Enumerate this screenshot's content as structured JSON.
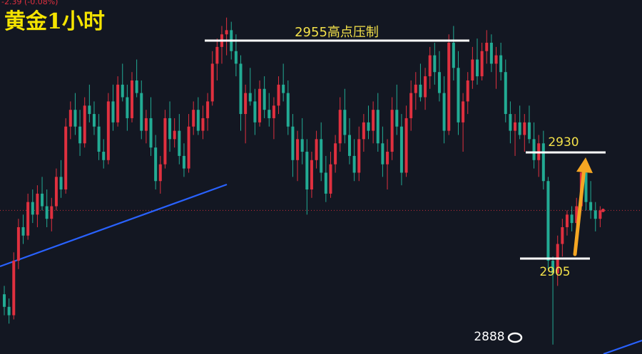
{
  "chart_data": {
    "type": "candlestick",
    "title": "黄金1小时",
    "ticker_readout": "-2.39 (-0.08%)",
    "colors": {
      "background": "#131722",
      "up": "#e0303f",
      "down": "#22ab94",
      "trendline": "#2962ff",
      "level_line": "#ffffff",
      "text": "#f3e14a",
      "arrow": "#f5a623",
      "current_price_line": "#e0303f"
    },
    "price_range": [
      2884,
      2970
    ],
    "current_price": 2918,
    "annotations": {
      "resistance": {
        "label": "2955高点压制",
        "price": 2955
      },
      "target": {
        "label": "2930",
        "price": 2930
      },
      "support": {
        "label": "2905",
        "price": 2905
      },
      "low": {
        "label": "2888",
        "price": 2888
      }
    },
    "candles": [
      [
        2898,
        2900,
        2893,
        2895
      ],
      [
        2895,
        2897,
        2891,
        2893
      ],
      [
        2893,
        2908,
        2892,
        2906
      ],
      [
        2906,
        2916,
        2904,
        2914
      ],
      [
        2914,
        2917,
        2910,
        2912
      ],
      [
        2912,
        2922,
        2911,
        2920
      ],
      [
        2920,
        2923,
        2915,
        2917
      ],
      [
        2917,
        2924,
        2914,
        2922
      ],
      [
        2922,
        2926,
        2918,
        2919
      ],
      [
        2919,
        2923,
        2914,
        2916
      ],
      [
        2916,
        2921,
        2913,
        2919
      ],
      [
        2919,
        2928,
        2918,
        2926
      ],
      [
        2926,
        2930,
        2921,
        2923
      ],
      [
        2923,
        2940,
        2922,
        2938
      ],
      [
        2938,
        2944,
        2935,
        2942
      ],
      [
        2942,
        2946,
        2936,
        2938
      ],
      [
        2938,
        2942,
        2931,
        2934
      ],
      [
        2934,
        2945,
        2933,
        2943
      ],
      [
        2943,
        2948,
        2939,
        2941
      ],
      [
        2941,
        2944,
        2936,
        2938
      ],
      [
        2938,
        2941,
        2930,
        2932
      ],
      [
        2932,
        2935,
        2928,
        2930
      ],
      [
        2930,
        2946,
        2929,
        2944
      ],
      [
        2944,
        2948,
        2937,
        2939
      ],
      [
        2939,
        2950,
        2938,
        2948
      ],
      [
        2948,
        2953,
        2944,
        2945
      ],
      [
        2945,
        2948,
        2937,
        2940
      ],
      [
        2940,
        2951,
        2939,
        2949
      ],
      [
        2949,
        2954,
        2945,
        2946
      ],
      [
        2946,
        2949,
        2935,
        2937
      ],
      [
        2937,
        2942,
        2934,
        2940
      ],
      [
        2940,
        2945,
        2931,
        2933
      ],
      [
        2933,
        2936,
        2923,
        2925
      ],
      [
        2925,
        2931,
        2922,
        2929
      ],
      [
        2929,
        2942,
        2928,
        2940
      ],
      [
        2940,
        2944,
        2932,
        2935
      ],
      [
        2935,
        2940,
        2933,
        2937
      ],
      [
        2937,
        2941,
        2929,
        2931
      ],
      [
        2931,
        2934,
        2926,
        2928
      ],
      [
        2928,
        2941,
        2927,
        2938
      ],
      [
        2938,
        2944,
        2936,
        2942
      ],
      [
        2942,
        2945,
        2936,
        2937
      ],
      [
        2937,
        2943,
        2935,
        2940
      ],
      [
        2940,
        2946,
        2937,
        2944
      ],
      [
        2944,
        2956,
        2943,
        2953
      ],
      [
        2953,
        2959,
        2949,
        2957
      ],
      [
        2957,
        2962,
        2953,
        2960
      ],
      [
        2960,
        2964,
        2955,
        2961
      ],
      [
        2961,
        2963,
        2954,
        2956
      ],
      [
        2956,
        2960,
        2950,
        2953
      ],
      [
        2953,
        2955,
        2937,
        2941
      ],
      [
        2941,
        2948,
        2934,
        2946
      ],
      [
        2946,
        2952,
        2943,
        2944
      ],
      [
        2944,
        2947,
        2936,
        2939
      ],
      [
        2939,
        2949,
        2938,
        2947
      ],
      [
        2947,
        2950,
        2940,
        2942
      ],
      [
        2942,
        2946,
        2938,
        2940
      ],
      [
        2940,
        2945,
        2935,
        2943
      ],
      [
        2943,
        2950,
        2941,
        2948
      ],
      [
        2948,
        2953,
        2944,
        2946
      ],
      [
        2946,
        2949,
        2936,
        2938
      ],
      [
        2938,
        2941,
        2926,
        2930
      ],
      [
        2930,
        2937,
        2925,
        2935
      ],
      [
        2935,
        2940,
        2929,
        2932
      ],
      [
        2932,
        2935,
        2917,
        2923
      ],
      [
        2923,
        2932,
        2921,
        2930
      ],
      [
        2930,
        2937,
        2928,
        2935
      ],
      [
        2935,
        2939,
        2925,
        2927
      ],
      [
        2927,
        2931,
        2920,
        2922
      ],
      [
        2922,
        2932,
        2921,
        2929
      ],
      [
        2929,
        2936,
        2927,
        2934
      ],
      [
        2934,
        2945,
        2932,
        2942
      ],
      [
        2942,
        2947,
        2934,
        2936
      ],
      [
        2936,
        2940,
        2929,
        2931
      ],
      [
        2931,
        2935,
        2925,
        2927
      ],
      [
        2927,
        2938,
        2925,
        2935
      ],
      [
        2935,
        2941,
        2932,
        2939
      ],
      [
        2939,
        2943,
        2935,
        2937
      ],
      [
        2937,
        2944,
        2934,
        2942
      ],
      [
        2942,
        2946,
        2932,
        2934
      ],
      [
        2934,
        2938,
        2926,
        2929
      ],
      [
        2929,
        2935,
        2923,
        2932
      ],
      [
        2932,
        2945,
        2930,
        2942
      ],
      [
        2942,
        2948,
        2936,
        2938
      ],
      [
        2938,
        2941,
        2924,
        2927
      ],
      [
        2927,
        2943,
        2926,
        2940
      ],
      [
        2940,
        2949,
        2937,
        2946
      ],
      [
        2946,
        2951,
        2942,
        2948
      ],
      [
        2948,
        2953,
        2944,
        2945
      ],
      [
        2945,
        2952,
        2942,
        2950
      ],
      [
        2950,
        2957,
        2947,
        2955
      ],
      [
        2955,
        2958,
        2948,
        2951
      ],
      [
        2951,
        2956,
        2944,
        2946
      ],
      [
        2946,
        2950,
        2934,
        2937
      ],
      [
        2937,
        2960,
        2936,
        2958
      ],
      [
        2958,
        2962,
        2949,
        2952
      ],
      [
        2952,
        2956,
        2936,
        2939
      ],
      [
        2939,
        2946,
        2932,
        2944
      ],
      [
        2944,
        2951,
        2941,
        2949
      ],
      [
        2949,
        2957,
        2947,
        2954
      ],
      [
        2954,
        2959,
        2948,
        2950
      ],
      [
        2950,
        2958,
        2949,
        2956
      ],
      [
        2956,
        2961,
        2953,
        2958
      ],
      [
        2958,
        2960,
        2951,
        2953
      ],
      [
        2953,
        2957,
        2947,
        2955
      ],
      [
        2955,
        2958,
        2949,
        2951
      ],
      [
        2951,
        2954,
        2939,
        2941
      ],
      [
        2941,
        2944,
        2934,
        2937
      ],
      [
        2937,
        2941,
        2931,
        2939
      ],
      [
        2939,
        2943,
        2935,
        2936
      ],
      [
        2936,
        2941,
        2932,
        2939
      ],
      [
        2939,
        2943,
        2934,
        2935
      ],
      [
        2935,
        2939,
        2928,
        2930
      ],
      [
        2930,
        2936,
        2926,
        2934
      ],
      [
        2934,
        2937,
        2923,
        2925
      ],
      [
        2925,
        2926,
        2904,
        2906
      ],
      [
        2906,
        2907,
        2886,
        2903
      ],
      [
        2903,
        2912,
        2900,
        2910
      ],
      [
        2910,
        2916,
        2907,
        2914
      ],
      [
        2914,
        2918,
        2912,
        2917
      ],
      [
        2917,
        2919,
        2913,
        2915
      ],
      [
        2915,
        2921,
        2914,
        2919
      ],
      [
        2919,
        2928,
        2918,
        2927
      ],
      [
        2927,
        2930,
        2918,
        2920
      ],
      [
        2920,
        2925,
        2916,
        2918
      ],
      [
        2918,
        2920,
        2913,
        2916
      ],
      [
        2916,
        2919,
        2914,
        2918
      ]
    ]
  }
}
